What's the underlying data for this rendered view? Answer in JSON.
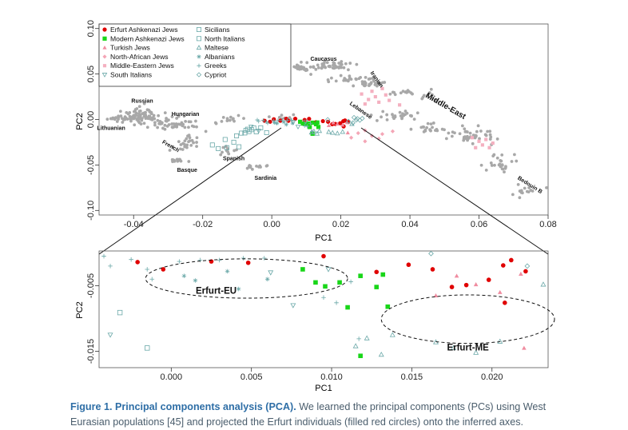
{
  "colors": {
    "erfurt_ashkenazi": "#e00000",
    "modern_ashkenazi": "#19d619",
    "turkish": "#f08ca0",
    "north_african": "#f4a6b6",
    "middle_eastern": "#f4b0c0",
    "reference_grey": "#a8a8a8",
    "european_marker": "#6aa8a8",
    "caption_bold": "#2e6ea6",
    "caption_text": "#4a5d6c"
  },
  "chart_data": [
    {
      "type": "scatter",
      "panel": "top",
      "xlabel": "PC1",
      "ylabel": "PC2",
      "xlim": [
        -0.05,
        0.08
      ],
      "ylim": [
        -0.105,
        0.105
      ],
      "xticks": [
        "-0.04",
        "-0.02",
        "0.00",
        "0.02",
        "0.04",
        "0.06",
        "0.08"
      ],
      "xtick_values": [
        -0.04,
        -0.02,
        0.0,
        0.02,
        0.04,
        0.06,
        0.08
      ],
      "yticks": [
        "-0.10",
        "-0.05",
        "0.00",
        "0.05",
        "0.10"
      ],
      "ytick_values": [
        -0.1,
        -0.05,
        0.0,
        0.05,
        0.1
      ],
      "legend_position": "top-left",
      "legend": [
        {
          "label": "Erfurt Ashkenazi Jews",
          "marker": "filled-circle",
          "color": "#e00000"
        },
        {
          "label": "Modern Ashkenazi Jews",
          "marker": "filled-square",
          "color": "#19d619"
        },
        {
          "label": "Turkish Jews",
          "marker": "filled-triangle",
          "color": "#f08ca0"
        },
        {
          "label": "North-African Jews",
          "marker": "filled-diamond",
          "color": "#f4a6b6"
        },
        {
          "label": "Middle-Eastern Jews",
          "marker": "filled-square-small",
          "color": "#f4b0c0"
        },
        {
          "label": "South Italians",
          "marker": "open-triangle-down",
          "color": "#6aa8a8"
        },
        {
          "label": "Sicilians",
          "marker": "open-square",
          "color": "#6aa8a8"
        },
        {
          "label": "North Italians",
          "marker": "open-square",
          "color": "#6aa8a8"
        },
        {
          "label": "Maltese",
          "marker": "open-triangle",
          "color": "#6aa8a8"
        },
        {
          "label": "Albanians",
          "marker": "star",
          "color": "#6aa8a8"
        },
        {
          "label": "Greeks",
          "marker": "plus",
          "color": "#6aa8a8"
        },
        {
          "label": "Cypriot",
          "marker": "open-diamond",
          "color": "#6aa8a8"
        }
      ],
      "region_labels": [
        {
          "text": "Caucasus",
          "x": 0.015,
          "y": 0.0645,
          "rotate": 0,
          "size": "small"
        },
        {
          "text": "Iranian",
          "x": 0.03,
          "y": 0.043,
          "rotate": 55,
          "size": "small"
        },
        {
          "text": "Middle-East",
          "x": 0.05,
          "y": 0.0125,
          "rotate": 30,
          "size": "large"
        },
        {
          "text": "Lebanese",
          "x": 0.0255,
          "y": 0.0085,
          "rotate": 35,
          "size": "small"
        },
        {
          "text": "Russian",
          "x": -0.0375,
          "y": 0.0185,
          "rotate": 0,
          "size": "small"
        },
        {
          "text": "Hungarian",
          "x": -0.025,
          "y": 0.004,
          "rotate": 0,
          "size": "small"
        },
        {
          "text": "Lithuanian",
          "x": -0.0465,
          "y": -0.0115,
          "rotate": 0,
          "size": "small"
        },
        {
          "text": "French",
          "x": -0.0295,
          "y": -0.031,
          "rotate": 30,
          "size": "small"
        },
        {
          "text": "Basque",
          "x": -0.0245,
          "y": -0.0575,
          "rotate": 0,
          "size": "small"
        },
        {
          "text": "Spanish",
          "x": -0.011,
          "y": -0.045,
          "rotate": 0,
          "size": "small"
        },
        {
          "text": "Sardinia",
          "x": -0.0018,
          "y": -0.0665,
          "rotate": 0,
          "size": "small"
        },
        {
          "text": "Bedouin B",
          "x": 0.0745,
          "y": -0.0735,
          "rotate": 32,
          "size": "small"
        }
      ],
      "series": [
        {
          "name": "Erfurt Ashkenazi Jews",
          "marker": "filled-circle",
          "points": [
            [
              -0.0021,
              -0.0014
            ],
            [
              -0.0005,
              -0.0025
            ],
            [
              0.0006,
              0.0002
            ],
            [
              0.0025,
              -0.0013
            ],
            [
              0.0042,
              0.0008
            ],
            [
              0.0048,
              -0.0015
            ],
            [
              0.0068,
              0.0008
            ],
            [
              0.0095,
              -0.0005
            ],
            [
              0.0108,
              0.0007
            ],
            [
              0.0128,
              -0.0029
            ],
            [
              0.0148,
              -0.0018
            ],
            [
              0.0163,
              -0.0025
            ],
            [
              0.0175,
              -0.0052
            ],
            [
              0.0184,
              -0.0049
            ],
            [
              0.0198,
              -0.0041
            ],
            [
              0.0207,
              -0.0019
            ],
            [
              0.0221,
              -0.0028
            ],
            [
              0.0208,
              -0.0076
            ],
            [
              0.0212,
              -0.0011
            ]
          ]
        },
        {
          "name": "Modern Ashkenazi Jews",
          "marker": "filled-square",
          "points": [
            [
              0.0082,
              -0.0025
            ],
            [
              0.009,
              -0.0045
            ],
            [
              0.0096,
              -0.0051
            ],
            [
              0.0105,
              -0.0045
            ],
            [
              0.011,
              -0.0083
            ],
            [
              0.0118,
              -0.0035
            ],
            [
              0.0118,
              -0.0157
            ],
            [
              0.0128,
              -0.0052
            ],
            [
              0.0132,
              -0.0033
            ],
            [
              0.0135,
              -0.0082
            ]
          ]
        },
        {
          "name": "Turkish Jews",
          "marker": "filled-triangle",
          "points": [
            [
              0.0165,
              -0.0065
            ],
            [
              0.0178,
              -0.0035
            ],
            [
              0.019,
              -0.0048
            ],
            [
              0.0205,
              -0.006
            ],
            [
              0.0218,
              -0.0032
            ],
            [
              0.022,
              -0.0145
            ]
          ]
        },
        {
          "name": "North-African Jews",
          "marker": "filled-diamond",
          "points": [
            [
              0.025,
              -0.015
            ],
            [
              0.027,
              -0.012
            ],
            [
              0.029,
              -0.018
            ],
            [
              0.032,
              -0.016
            ],
            [
              0.035,
              -0.013
            ],
            [
              0.023,
              -0.02
            ],
            [
              0.027,
              -0.024
            ],
            [
              0.031,
              -0.021
            ]
          ]
        },
        {
          "name": "Middle-Eastern Jews",
          "marker": "filled-square-small",
          "points": [
            [
              0.026,
              0.028
            ],
            [
              0.028,
              0.022
            ],
            [
              0.029,
              0.031
            ],
            [
              0.03,
              0.025
            ],
            [
              0.031,
              0.019
            ],
            [
              0.033,
              0.027
            ],
            [
              0.034,
              0.021
            ],
            [
              0.037,
              0.016
            ],
            [
              0.027,
              0.017
            ],
            [
              0.032,
              0.034
            ],
            [
              0.058,
              -0.02
            ],
            [
              0.06,
              -0.024
            ],
            [
              0.061,
              -0.028
            ],
            [
              0.062,
              -0.022
            ],
            [
              0.063,
              -0.031
            ],
            [
              0.064,
              -0.026
            ],
            [
              0.059,
              -0.031
            ]
          ]
        },
        {
          "name": "South Italians",
          "marker": "open-triangle-down",
          "points": [
            [
              -0.0038,
              -0.0125
            ],
            [
              0.0062,
              -0.003
            ],
            [
              0.0076,
              -0.008
            ],
            [
              0.0098,
              -0.0025
            ],
            [
              -0.006,
              -0.008
            ]
          ]
        },
        {
          "name": "Sicilians",
          "marker": "open-square",
          "points": [
            [
              -0.0078,
              -0.0148
            ],
            [
              -0.007,
              -0.0107
            ],
            [
              -0.0066,
              -0.0133
            ],
            [
              -0.0045,
              -0.0136
            ],
            [
              -0.0052,
              -0.0093
            ],
            [
              -0.0095,
              -0.03
            ],
            [
              -0.011,
              -0.025
            ],
            [
              -0.013,
              -0.031
            ]
          ]
        },
        {
          "name": "North Italians",
          "marker": "open-square",
          "points": [
            [
              -0.0058,
              -0.0112
            ],
            [
              -0.0032,
              -0.0091
            ],
            [
              -0.0015,
              -0.0145
            ],
            [
              -0.0075,
              -0.012
            ],
            [
              -0.0155,
              -0.032
            ],
            [
              -0.0172,
              -0.028
            ],
            [
              -0.0135,
              -0.022
            ],
            [
              -0.0102,
              -0.018
            ],
            [
              -0.0088,
              -0.015
            ]
          ]
        },
        {
          "name": "Maltese",
          "marker": "open-triangle",
          "points": [
            [
              0.0115,
              -0.0142
            ],
            [
              0.0122,
              -0.013
            ],
            [
              0.0138,
              -0.0125
            ],
            [
              0.0131,
              -0.0155
            ],
            [
              0.0176,
              -0.0145
            ],
            [
              0.0165,
              -0.0136
            ],
            [
              0.019,
              -0.0152
            ],
            [
              0.0205,
              -0.0135
            ],
            [
              0.0232,
              -0.0048
            ]
          ]
        },
        {
          "name": "Albanians",
          "marker": "star",
          "points": [
            [
              0.0008,
              -0.0035
            ],
            [
              0.0015,
              -0.0042
            ],
            [
              0.0035,
              -0.0028
            ],
            [
              0.0042,
              -0.0055
            ],
            [
              0.006,
              -0.004
            ]
          ]
        },
        {
          "name": "Greeks",
          "marker": "plus",
          "points": [
            [
              -0.0038,
              -0.002
            ],
            [
              -0.0025,
              -0.001
            ],
            [
              -0.0015,
              -0.0025
            ],
            [
              -0.0012,
              -0.004
            ],
            [
              0.0005,
              -0.0013
            ],
            [
              0.0018,
              -0.0011
            ],
            [
              0.003,
              -0.0011
            ],
            [
              0.0045,
              -0.0008
            ],
            [
              0.0058,
              -0.0008
            ],
            [
              0.0095,
              -0.0068
            ],
            [
              0.0112,
              -0.0044
            ],
            [
              0.0117,
              -0.0131
            ],
            [
              -0.0042,
              -0.0005
            ],
            [
              0.0103,
              -0.0076
            ]
          ]
        },
        {
          "name": "Cypriot",
          "marker": "open-diamond",
          "points": [
            [
              0.0162,
              -0.0001
            ],
            [
              0.0222,
              -0.002
            ],
            [
              0.0235,
              -0.0037
            ],
            [
              0.0245,
              -0.0005
            ],
            [
              0.0248,
              0.001
            ],
            [
              0.0255,
              -0.0008
            ],
            [
              0.0262,
              0.0012
            ],
            [
              0.0238,
              0.0022
            ]
          ]
        }
      ]
    },
    {
      "type": "scatter",
      "panel": "bottom-zoom",
      "xlabel": "PC1",
      "ylabel": "PC2",
      "xlim": [
        -0.0045,
        0.0235
      ],
      "ylim": [
        -0.0175,
        0.0003
      ],
      "xticks": [
        "0.000",
        "0.005",
        "0.010",
        "0.015",
        "0.020"
      ],
      "xtick_values": [
        0.0,
        0.005,
        0.01,
        0.015,
        0.02
      ],
      "yticks": [
        "-0.015",
        "-0.005"
      ],
      "ytick_values": [
        -0.015,
        -0.005
      ],
      "annotations": [
        {
          "text": "Erfurt-EU",
          "x": 0.0028,
          "y": -0.0062,
          "ellipse": {
            "cx": 0.0047,
            "cy": -0.0039,
            "rx": 0.0063,
            "ry": 0.003
          }
        },
        {
          "text": "Erfurt-ME",
          "x": 0.0185,
          "y": -0.0149,
          "ellipse": {
            "cx": 0.0185,
            "cy": -0.0101,
            "rx": 0.0054,
            "ry": 0.0037
          }
        }
      ],
      "series_ref": "same populations as top panel (zoomed view)"
    }
  ],
  "caption": {
    "bold": "Figure 1. Principal components analysis (PCA).",
    "text": " We learned the principal components (PCs) using West Eurasian populations [45] and projected the Erfurt individuals (filled red circles) onto the inferred axes."
  }
}
